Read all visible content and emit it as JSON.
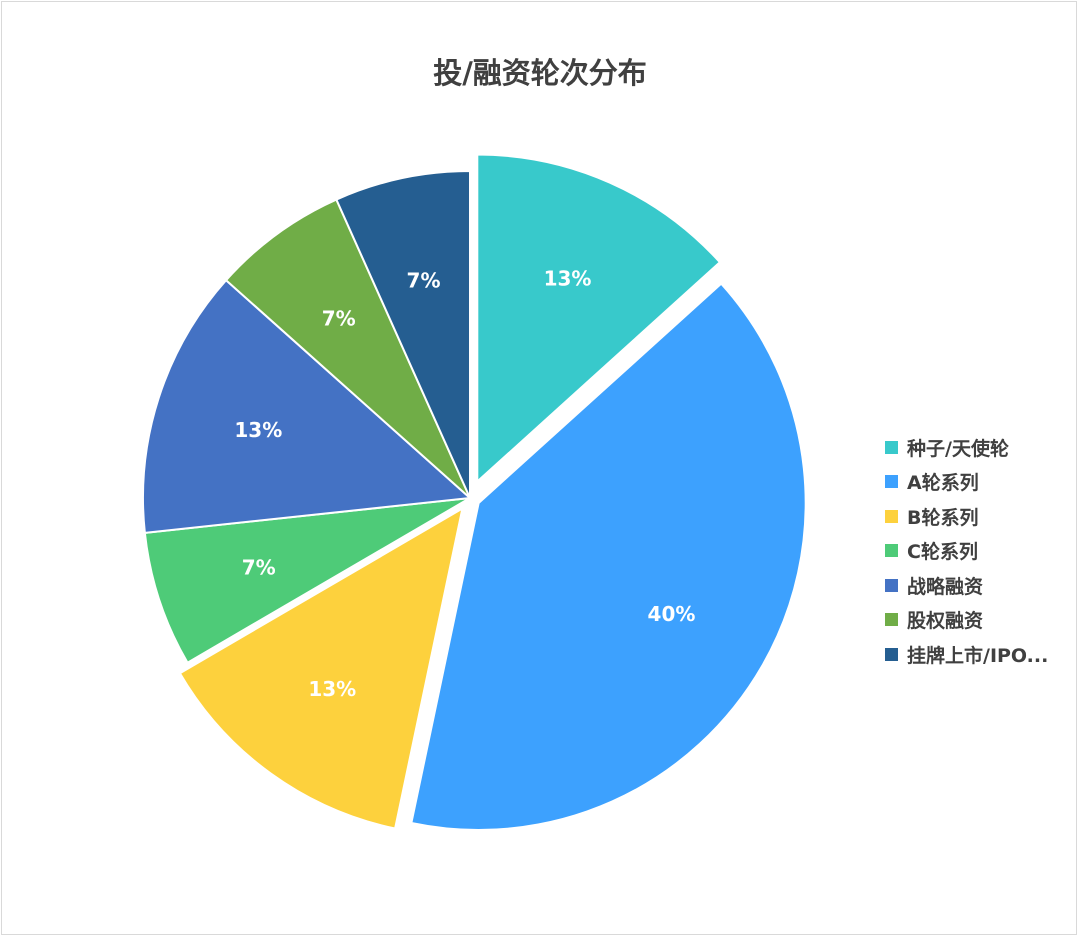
{
  "chart_data": {
    "type": "pie",
    "title": "投/融资轮次分布",
    "categories": [
      "种子/天使轮",
      "A轮系列",
      "B轮系列",
      "C轮系列",
      "战略融资",
      "股权融资",
      "挂牌上市/IPO..."
    ],
    "values": [
      13.3,
      40,
      13.3,
      6.7,
      13.3,
      6.7,
      6.7
    ],
    "labels": [
      "13%",
      "40%",
      "13%",
      "7%",
      "13%",
      "7%",
      "7%"
    ],
    "colors": [
      "#38C9CB",
      "#3DA1FE",
      "#FDD13D",
      "#4ECB78",
      "#4472C4",
      "#70AD47",
      "#255E91"
    ],
    "exploded": [
      true,
      true,
      true,
      false,
      false,
      false,
      false
    ],
    "start_angle": "12 o'clock, clockwise",
    "legend_position": "right"
  }
}
